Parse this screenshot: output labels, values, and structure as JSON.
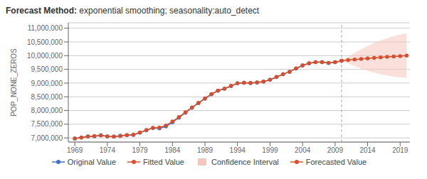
{
  "chart_data": {
    "type": "line",
    "title": "Forecast Method:",
    "subtitle": "exponential smoothing; seasonality:auto_detect",
    "y_label": "POP_NONE_ZEROS",
    "xlim": [
      1968.0,
      2020.5
    ],
    "ylim": [
      6850000,
      11200000
    ],
    "xticks": [
      1969,
      1974,
      1979,
      1984,
      1989,
      1994,
      1999,
      2004,
      2009,
      2014,
      2019
    ],
    "yticks": [
      {
        "value": 7000000,
        "label": "7,000,000"
      },
      {
        "value": 7500000,
        "label": "7,500,000"
      },
      {
        "value": 8000000,
        "label": "8,000,000"
      },
      {
        "value": 8500000,
        "label": "8,500,000"
      },
      {
        "value": 9000000,
        "label": "9,000,000"
      },
      {
        "value": 9500000,
        "label": "9,500,000"
      },
      {
        "value": 10000000,
        "label": "10,000,000"
      },
      {
        "value": 10500000,
        "label": "10,500,000"
      },
      {
        "value": 11000000,
        "label": "11,000,000"
      }
    ],
    "grid": true,
    "legend": "bottom",
    "vertical_line": {
      "x": 2010,
      "line_style": "dashed",
      "color": "#aaaaaa"
    },
    "series": [
      {
        "name": "Original Value",
        "type": "line",
        "color": "#4472c4",
        "marker": "o",
        "x": [
          1969,
          1970,
          1971,
          1972,
          1973,
          1974,
          1975,
          1976,
          1977,
          1978,
          1979,
          1980,
          1981,
          1982,
          1983,
          1984,
          1985,
          1986,
          1987,
          1988,
          1989,
          1990,
          1991,
          1992,
          1993,
          1994,
          1995,
          1996,
          1997,
          1998,
          1999,
          2000,
          2001,
          2002,
          2003,
          2004,
          2005,
          2006,
          2007,
          2008,
          2009,
          2010
        ],
        "values": [
          6980000,
          7020000,
          7055000,
          7060000,
          7100000,
          7055000,
          7050000,
          7080000,
          7100000,
          7110000,
          7195000,
          7280000,
          7360000,
          7350000,
          7420000,
          7570000,
          7740000,
          7920000,
          8100000,
          8270000,
          8430000,
          8590000,
          8720000,
          8790000,
          8890000,
          8990000,
          9010000,
          9000000,
          9020000,
          9050000,
          9120000,
          9220000,
          9320000,
          9410000,
          9530000,
          9640000,
          9720000,
          9760000,
          9760000,
          9730000,
          9760000,
          9810000
        ]
      },
      {
        "name": "Fitted Value",
        "type": "line",
        "color": "#d94f2b",
        "marker": "o",
        "x": [
          1969,
          1970,
          1971,
          1972,
          1973,
          1974,
          1975,
          1976,
          1977,
          1978,
          1979,
          1980,
          1981,
          1982,
          1983,
          1984,
          1985,
          1986,
          1987,
          1988,
          1989,
          1990,
          1991,
          1992,
          1993,
          1994,
          1995,
          1996,
          1997,
          1998,
          1999,
          2000,
          2001,
          2002,
          2003,
          2004,
          2005,
          2006,
          2007,
          2008,
          2009,
          2010
        ],
        "values": [
          6980000,
          7010000,
          7050000,
          7070000,
          7090000,
          7060000,
          7050000,
          7070000,
          7100000,
          7120000,
          7200000,
          7290000,
          7370000,
          7380000,
          7450000,
          7600000,
          7760000,
          7940000,
          8110000,
          8280000,
          8440000,
          8600000,
          8730000,
          8800000,
          8900000,
          8995000,
          9015000,
          9005000,
          9025000,
          9055000,
          9125000,
          9225000,
          9325000,
          9415000,
          9535000,
          9645000,
          9725000,
          9765000,
          9765000,
          9735000,
          9765000,
          9815000
        ]
      },
      {
        "name": "Confidence Interval",
        "type": "band",
        "color": "#f5c6bb",
        "x": [
          2010,
          2011,
          2012,
          2013,
          2014,
          2015,
          2016,
          2017,
          2018,
          2019,
          2020
        ],
        "lower": [
          9815000,
          9720000,
          9620000,
          9530000,
          9450000,
          9380000,
          9325000,
          9275000,
          9235000,
          9205000,
          9185000
        ],
        "upper": [
          9815000,
          9960000,
          10100000,
          10230000,
          10350000,
          10460000,
          10555000,
          10635000,
          10705000,
          10765000,
          10815000
        ]
      },
      {
        "name": "Forecasted Value",
        "type": "line",
        "color": "#d94f2b",
        "marker": "o",
        "x": [
          2010,
          2011,
          2012,
          2013,
          2014,
          2015,
          2016,
          2017,
          2018,
          2019,
          2020
        ],
        "values": [
          9815000,
          9840000,
          9860000,
          9880000,
          9900000,
          9920000,
          9940000,
          9955000,
          9970000,
          9985000,
          10000000
        ]
      }
    ]
  }
}
